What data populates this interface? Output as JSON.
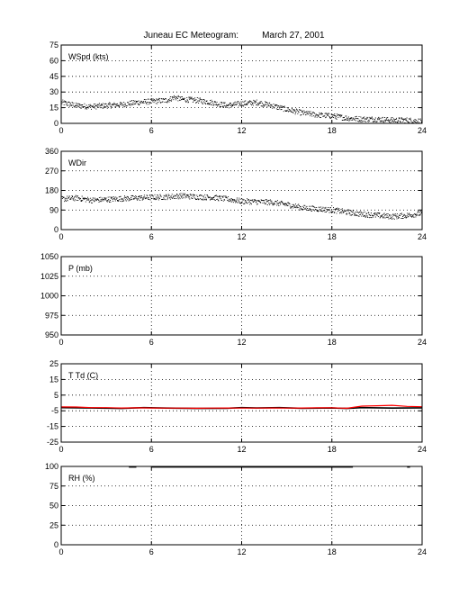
{
  "figure": {
    "title": "Juneau EC Meteogram:",
    "date": "March 27, 2001"
  },
  "chart_data": [
    {
      "type": "scatter",
      "panel_label": "WSpd (kts)",
      "xlim": [
        0,
        24
      ],
      "ylim": [
        0,
        75
      ],
      "xticks": [
        "0",
        "6",
        "12",
        "18",
        "24"
      ],
      "yticks": [
        "0",
        "15",
        "30",
        "45",
        "60",
        "75"
      ],
      "grid": true,
      "series": [
        {
          "color": "#000000",
          "x": [
            0,
            1,
            2,
            3,
            4,
            5,
            6,
            7,
            7.5,
            8,
            9,
            10,
            11,
            12,
            13,
            14,
            15,
            16,
            17,
            18,
            19,
            20,
            21,
            22,
            23,
            24
          ],
          "y": [
            20,
            17,
            16,
            17,
            18,
            20,
            21,
            22,
            25,
            23,
            22,
            20,
            17,
            19,
            20,
            17,
            13,
            10,
            8,
            7,
            5,
            4,
            4,
            3,
            3,
            2
          ]
        }
      ]
    },
    {
      "type": "scatter",
      "panel_label": "WDir",
      "xlim": [
        0,
        24
      ],
      "ylim": [
        0,
        360
      ],
      "xticks": [
        "0",
        "6",
        "12",
        "18",
        "24"
      ],
      "yticks": [
        "0",
        "90",
        "180",
        "270",
        "360"
      ],
      "grid": true,
      "series": [
        {
          "color": "#000000",
          "x": [
            0,
            1,
            2,
            3,
            4,
            5,
            6,
            7,
            8,
            9,
            10,
            11,
            12,
            13,
            14,
            15,
            16,
            17,
            18,
            19,
            20,
            21,
            22,
            23,
            24
          ],
          "y": [
            140,
            145,
            135,
            138,
            142,
            145,
            148,
            150,
            155,
            150,
            148,
            140,
            130,
            128,
            125,
            115,
            100,
            95,
            90,
            80,
            70,
            65,
            60,
            65,
            75
          ]
        }
      ]
    },
    {
      "type": "line",
      "panel_label": "P (mb)",
      "xlim": [
        0,
        24
      ],
      "ylim": [
        950,
        1050
      ],
      "xticks": [
        "0",
        "6",
        "12",
        "18",
        "24"
      ],
      "yticks": [
        "950",
        "975",
        "1000",
        "1025",
        "1050"
      ],
      "grid": true,
      "series": []
    },
    {
      "type": "line",
      "panel_label": "T Td (C)",
      "xlim": [
        0,
        24
      ],
      "ylim": [
        -25,
        25
      ],
      "xticks": [
        "0",
        "6",
        "12",
        "18",
        "24"
      ],
      "yticks": [
        "-25",
        "-15",
        "-5",
        "5",
        "15",
        "25"
      ],
      "grid": true,
      "series": [
        {
          "color": "#000000",
          "x": [
            0,
            2,
            4,
            5.5,
            7,
            9,
            11,
            12,
            13,
            14.5,
            16,
            18,
            19,
            20,
            22,
            24
          ],
          "y": [
            -3,
            -3.2,
            -3.5,
            -3,
            -3.3,
            -3.5,
            -3.4,
            -3,
            -3.2,
            -3,
            -3.4,
            -3.2,
            -3.5,
            -3,
            -3.3,
            -3.1
          ]
        },
        {
          "color": "#ff0000",
          "x": [
            0,
            1,
            2,
            3,
            4,
            5,
            6,
            7,
            8,
            9,
            10,
            11,
            12,
            13,
            14,
            15,
            16,
            17,
            18,
            19,
            20,
            21,
            22,
            23,
            24
          ],
          "y": [
            -2.5,
            -2.6,
            -3,
            -3,
            -3.2,
            -3.1,
            -3.2,
            -3.3,
            -3.3,
            -3.4,
            -3.3,
            -3.2,
            -3.3,
            -3.3,
            -3.2,
            -3.3,
            -3.2,
            -3.1,
            -3.1,
            -3.4,
            -2,
            -1.8,
            -1.5,
            -2.2,
            -2.4
          ]
        }
      ]
    },
    {
      "type": "line",
      "panel_label": "RH (%)",
      "xlim": [
        0,
        24
      ],
      "ylim": [
        0,
        100
      ],
      "xticks": [
        "0",
        "6",
        "12",
        "18",
        "24"
      ],
      "yticks": [
        "0",
        "25",
        "50",
        "75",
        "100"
      ],
      "grid": true,
      "series": [
        {
          "color": "#000000",
          "segments": [
            {
              "x": [
                4.5,
                5.0
              ],
              "y": [
                99.5,
                99.5
              ]
            },
            {
              "x": [
                6.0,
                19.4
              ],
              "y": [
                99.5,
                99.5
              ]
            },
            {
              "x": [
                23.0,
                23.2
              ],
              "y": [
                99.5,
                99.5
              ]
            }
          ]
        }
      ]
    }
  ]
}
